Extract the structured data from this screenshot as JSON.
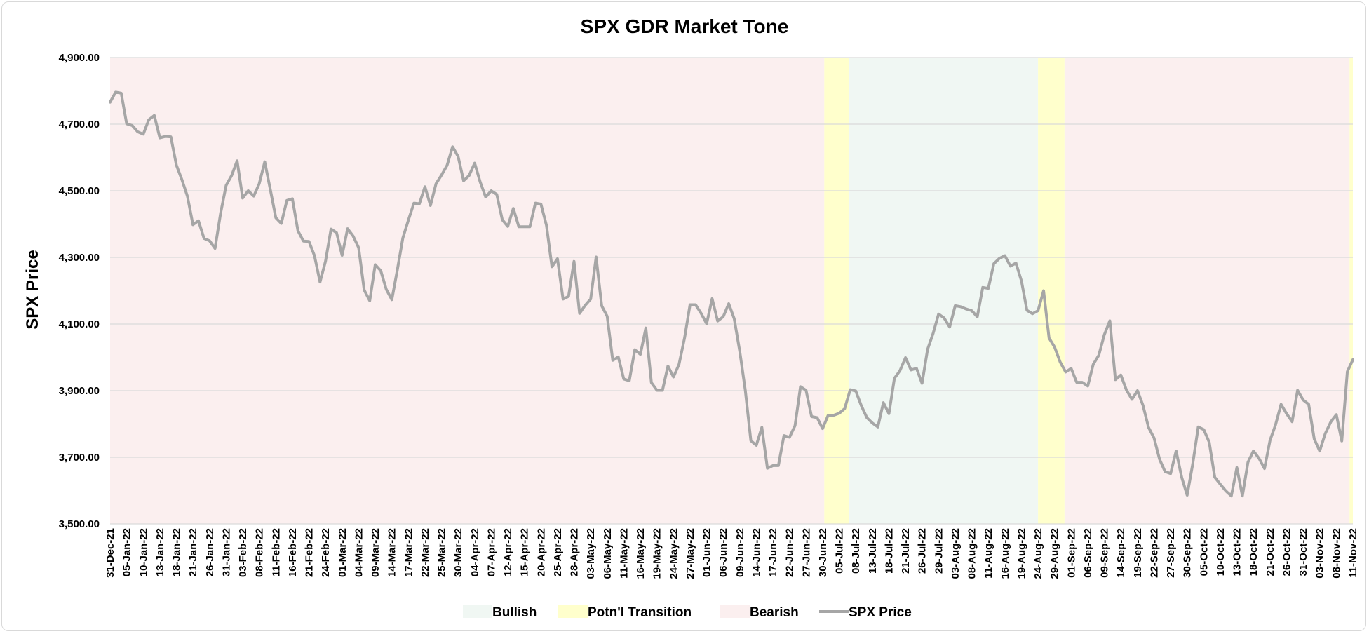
{
  "chart_data": {
    "type": "line",
    "title": "SPX GDR Market Tone",
    "ylabel": "SPX Price",
    "xlabel": "",
    "ylim": [
      3500,
      4900
    ],
    "yticks": [
      3500,
      3700,
      3900,
      4100,
      4300,
      4500,
      4700,
      4900
    ],
    "ytick_labels": [
      "3,500.00",
      "3,700.00",
      "3,900.00",
      "4,100.00",
      "4,300.00",
      "4,500.00",
      "4,700.00",
      "4,900.00"
    ],
    "x_tick_labels": [
      "31-Dec-21",
      "05-Jan-22",
      "10-Jan-22",
      "13-Jan-22",
      "18-Jan-22",
      "21-Jan-22",
      "26-Jan-22",
      "31-Jan-22",
      "03-Feb-22",
      "08-Feb-22",
      "11-Feb-22",
      "16-Feb-22",
      "21-Feb-22",
      "24-Feb-22",
      "01-Mar-22",
      "04-Mar-22",
      "09-Mar-22",
      "14-Mar-22",
      "17-Mar-22",
      "22-Mar-22",
      "25-Mar-22",
      "30-Mar-22",
      "04-Apr-22",
      "07-Apr-22",
      "12-Apr-22",
      "15-Apr-22",
      "20-Apr-22",
      "25-Apr-22",
      "28-Apr-22",
      "03-May-22",
      "06-May-22",
      "11-May-22",
      "16-May-22",
      "19-May-22",
      "24-May-22",
      "27-May-22",
      "01-Jun-22",
      "06-Jun-22",
      "09-Jun-22",
      "14-Jun-22",
      "17-Jun-22",
      "22-Jun-22",
      "27-Jun-22",
      "30-Jun-22",
      "05-Jul-22",
      "08-Jul-22",
      "13-Jul-22",
      "18-Jul-22",
      "21-Jul-22",
      "26-Jul-22",
      "29-Jul-22",
      "03-Aug-22",
      "08-Aug-22",
      "11-Aug-22",
      "16-Aug-22",
      "19-Aug-22",
      "24-Aug-22",
      "29-Aug-22",
      "01-Sep-22",
      "06-Sep-22",
      "09-Sep-22",
      "14-Sep-22",
      "19-Sep-22",
      "22-Sep-22",
      "27-Sep-22",
      "30-Sep-22",
      "05-Oct-22",
      "10-Oct-22",
      "13-Oct-22",
      "18-Oct-22",
      "21-Oct-22",
      "26-Oct-22",
      "31-Oct-22",
      "03-Nov-22",
      "08-Nov-22",
      "11-Nov-22"
    ],
    "series": [
      {
        "name": "SPX Price",
        "color": "#a6a6a6",
        "values": [
          4766,
          4796,
          4793,
          4701,
          4696,
          4677,
          4670,
          4713,
          4726,
          4659,
          4663,
          4662,
          4577,
          4533,
          4483,
          4398,
          4410,
          4357,
          4350,
          4327,
          4432,
          4516,
          4546,
          4590,
          4478,
          4500,
          4484,
          4521,
          4587,
          4504,
          4419,
          4402,
          4471,
          4476,
          4380,
          4349,
          4348,
          4305,
          4226,
          4288,
          4385,
          4374,
          4306,
          4386,
          4364,
          4329,
          4202,
          4170,
          4278,
          4260,
          4204,
          4173,
          4262,
          4358,
          4412,
          4463,
          4461,
          4512,
          4456,
          4521,
          4547,
          4576,
          4632,
          4603,
          4530,
          4546,
          4583,
          4526,
          4481,
          4500,
          4489,
          4413,
          4393,
          4447,
          4392,
          4392,
          4392,
          4463,
          4460,
          4396,
          4272,
          4296,
          4175,
          4183,
          4288,
          4132,
          4156,
          4175,
          4301,
          4155,
          4123,
          3991,
          4001,
          3935,
          3930,
          4023,
          4009,
          4088,
          3924,
          3901,
          3901,
          3974,
          3941,
          3979,
          4058,
          4158,
          4158,
          4132,
          4101,
          4176,
          4109,
          4122,
          4161,
          4116,
          4018,
          3901,
          3750,
          3736,
          3790,
          3667,
          3675,
          3675,
          3765,
          3760,
          3795,
          3912,
          3901,
          3822,
          3819,
          3786,
          3826,
          3826,
          3832,
          3846,
          3903,
          3899,
          3855,
          3819,
          3803,
          3791,
          3864,
          3831,
          3937,
          3960,
          3999,
          3962,
          3967,
          3922,
          4024,
          4072,
          4130,
          4118,
          4091,
          4155,
          4152,
          4145,
          4140,
          4122,
          4210,
          4207,
          4281,
          4297,
          4305,
          4274,
          4283,
          4229,
          4141,
          4131,
          4140,
          4200,
          4058,
          4031,
          3986,
          3956,
          3967,
          3925,
          3925,
          3914,
          3979,
          4006,
          4068,
          4110,
          3933,
          3947,
          3902,
          3874,
          3900,
          3856,
          3790,
          3758,
          3694,
          3657,
          3651,
          3719,
          3640,
          3586,
          3679,
          3791,
          3783,
          3745,
          3640,
          3619,
          3599,
          3584,
          3669,
          3584,
          3685,
          3719,
          3697,
          3666,
          3751,
          3797,
          3859,
          3831,
          3807,
          3901,
          3872,
          3859,
          3755,
          3719,
          3771,
          3806,
          3828,
          3749,
          3957,
          3993
        ]
      }
    ],
    "regions": [
      {
        "label": "Bearish",
        "color": "#fbefef",
        "start_tick": 0,
        "end_tick": 43.1
      },
      {
        "label": "Potn'l Transition",
        "color": "#ffffcc",
        "start_tick": 43.1,
        "end_tick": 44.6
      },
      {
        "label": "Bullish",
        "color": "#f0f7f3",
        "start_tick": 44.6,
        "end_tick": 56.0
      },
      {
        "label": "Potn'l Transition",
        "color": "#ffffcc",
        "start_tick": 56.0,
        "end_tick": 57.6
      },
      {
        "label": "Bearish",
        "color": "#fbefef",
        "start_tick": 57.6,
        "end_tick": 74.8
      },
      {
        "label": "Potn'l Transition",
        "color": "#ffffcc",
        "start_tick": 74.8,
        "end_tick": 75
      }
    ],
    "legend": [
      {
        "label": "Bullish",
        "kind": "box",
        "color": "#f0f7f3"
      },
      {
        "label": "Potn'l Transition",
        "kind": "box",
        "color": "#ffffcc"
      },
      {
        "label": "Bearish",
        "kind": "box",
        "color": "#fbefef"
      },
      {
        "label": "SPX Price",
        "kind": "line",
        "color": "#a6a6a6"
      }
    ],
    "legend_position": "bottom",
    "grid": true,
    "gridline_color": "#d9d9d9"
  }
}
